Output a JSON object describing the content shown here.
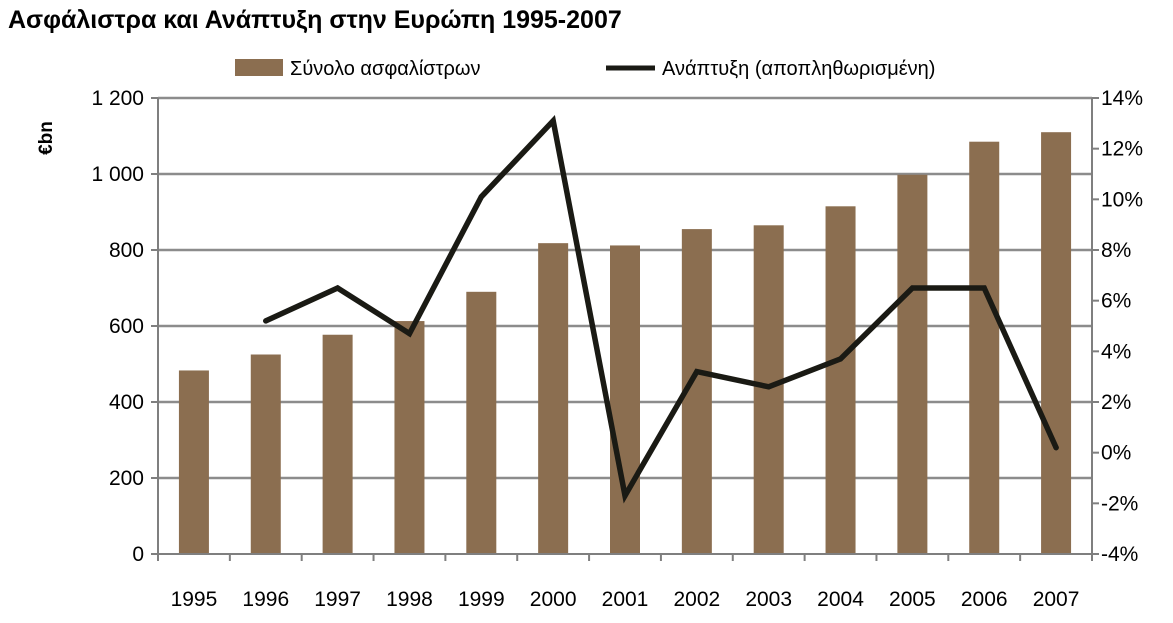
{
  "chart_data": {
    "type": "bar+line",
    "title": "Ασφάλιστρα και Ανάπτυξη στην Ευρώπη 1995-2007",
    "categories": [
      "1995",
      "1996",
      "1997",
      "1998",
      "1999",
      "2000",
      "2001",
      "2002",
      "2003",
      "2004",
      "2005",
      "2006",
      "2007"
    ],
    "series": [
      {
        "name": "Σύνολο ασφαλίστρων",
        "type": "bar",
        "axis": "left",
        "color": "#8B6E50",
        "values": [
          483,
          525,
          577,
          613,
          690,
          818,
          812,
          855,
          865,
          915,
          998,
          1085,
          1110
        ]
      },
      {
        "name": "Ανάπτυξη (αποπληθωρισμένη)",
        "type": "line",
        "axis": "right",
        "color": "#1a1a14",
        "values": [
          null,
          5.2,
          6.5,
          4.7,
          10.1,
          13.1,
          -1.7,
          3.2,
          2.6,
          3.7,
          6.5,
          6.5,
          0.2
        ]
      }
    ],
    "ylabel_left": "€bn",
    "ylim_left": [
      0,
      1200
    ],
    "yticks_left": [
      "0",
      "200",
      "400",
      "600",
      "800",
      "1 000",
      "1 200"
    ],
    "ylim_right": [
      -4,
      14
    ],
    "yticks_right": [
      "-4%",
      "-2%",
      "0%",
      "2%",
      "4%",
      "6%",
      "8%",
      "10%",
      "12%",
      "14%"
    ],
    "grid": true,
    "legend_position": "top"
  }
}
